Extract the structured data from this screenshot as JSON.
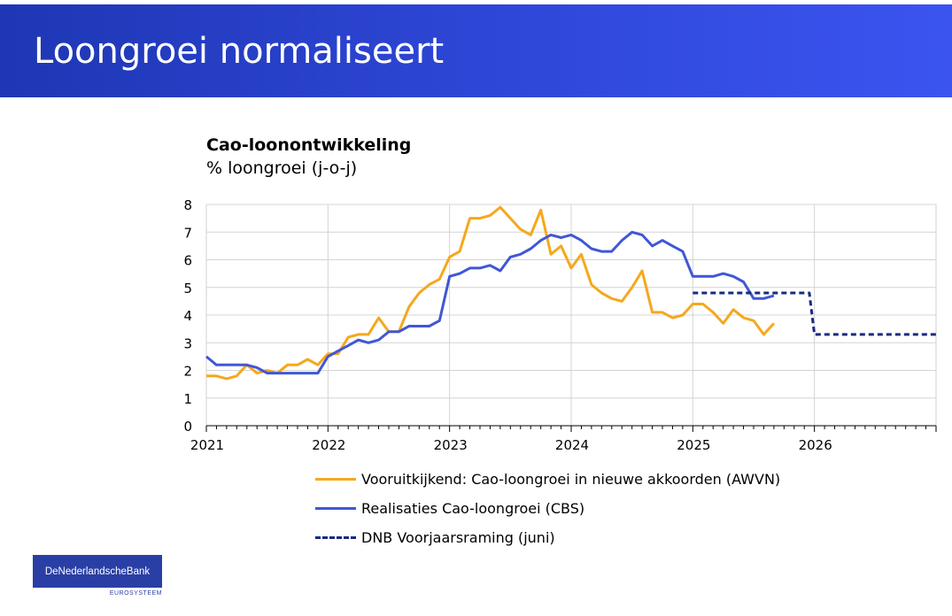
{
  "slide": {
    "title": "Loongroei normaliseert"
  },
  "logo": {
    "name": "DeNederlandscheBank",
    "subtext": "EUROSYSTEEM"
  },
  "chart_data": {
    "type": "line",
    "title": "Cao-loonontwikkeling",
    "subtitle": "% loongroei (j-o-j)",
    "ylim": [
      0,
      8
    ],
    "yticks": [
      0,
      1,
      2,
      3,
      4,
      5,
      6,
      7,
      8
    ],
    "xlim": [
      2021,
      2027
    ],
    "xticks": [
      2021,
      2022,
      2023,
      2024,
      2025,
      2026
    ],
    "grid": true,
    "legend_placement": "bottom",
    "series": [
      {
        "name": "Vooruitkijkend: Cao-loongroei in nieuwe akkoorden (AWVN)",
        "color": "#f5a81c",
        "style": "solid",
        "x": [
          2021.0,
          2021.083,
          2021.167,
          2021.25,
          2021.333,
          2021.417,
          2021.5,
          2021.583,
          2021.667,
          2021.75,
          2021.833,
          2021.917,
          2022.0,
          2022.083,
          2022.167,
          2022.25,
          2022.333,
          2022.417,
          2022.5,
          2022.583,
          2022.667,
          2022.75,
          2022.833,
          2022.917,
          2023.0,
          2023.083,
          2023.167,
          2023.25,
          2023.333,
          2023.417,
          2023.5,
          2023.583,
          2023.667,
          2023.75,
          2023.833,
          2023.917,
          2024.0,
          2024.083,
          2024.167,
          2024.25,
          2024.333,
          2024.417,
          2024.5,
          2024.583,
          2024.667,
          2024.75,
          2024.833,
          2024.917,
          2025.0,
          2025.083,
          2025.167,
          2025.25,
          2025.333,
          2025.417,
          2025.5,
          2025.583,
          2025.667
        ],
        "y": [
          1.8,
          1.8,
          1.7,
          1.8,
          2.2,
          1.9,
          2.0,
          1.9,
          2.2,
          2.2,
          2.4,
          2.2,
          2.6,
          2.6,
          3.2,
          3.3,
          3.3,
          3.9,
          3.4,
          3.4,
          4.3,
          4.8,
          5.1,
          5.3,
          6.1,
          6.3,
          7.5,
          7.5,
          7.6,
          7.9,
          7.5,
          7.1,
          6.9,
          7.8,
          6.2,
          6.5,
          5.7,
          6.2,
          5.1,
          4.8,
          4.6,
          4.5,
          5.0,
          5.6,
          4.1,
          4.1,
          3.9,
          4.0,
          4.4,
          4.4,
          4.1,
          3.7,
          4.2,
          3.9,
          3.8,
          3.3,
          3.7
        ]
      },
      {
        "name": "Realisaties Cao-loongroei (CBS)",
        "color": "#3f57d6",
        "style": "solid",
        "x": [
          2021.0,
          2021.083,
          2021.167,
          2021.25,
          2021.333,
          2021.417,
          2021.5,
          2021.583,
          2021.667,
          2021.75,
          2021.833,
          2021.917,
          2022.0,
          2022.083,
          2022.167,
          2022.25,
          2022.333,
          2022.417,
          2022.5,
          2022.583,
          2022.667,
          2022.75,
          2022.833,
          2022.917,
          2023.0,
          2023.083,
          2023.167,
          2023.25,
          2023.333,
          2023.417,
          2023.5,
          2023.583,
          2023.667,
          2023.75,
          2023.833,
          2023.917,
          2024.0,
          2024.083,
          2024.167,
          2024.25,
          2024.333,
          2024.417,
          2024.5,
          2024.583,
          2024.667,
          2024.75,
          2024.833,
          2024.917,
          2025.0,
          2025.083,
          2025.167,
          2025.25,
          2025.333,
          2025.417,
          2025.5,
          2025.583,
          2025.667
        ],
        "y": [
          2.5,
          2.2,
          2.2,
          2.2,
          2.2,
          2.1,
          1.9,
          1.9,
          1.9,
          1.9,
          1.9,
          1.9,
          2.5,
          2.7,
          2.9,
          3.1,
          3.0,
          3.1,
          3.4,
          3.4,
          3.6,
          3.6,
          3.6,
          3.8,
          5.4,
          5.5,
          5.7,
          5.7,
          5.8,
          5.6,
          6.1,
          6.2,
          6.4,
          6.7,
          6.9,
          6.8,
          6.9,
          6.7,
          6.4,
          6.3,
          6.3,
          6.7,
          7.0,
          6.9,
          6.5,
          6.7,
          6.5,
          6.3,
          5.4,
          5.4,
          5.4,
          5.5,
          5.4,
          5.2,
          4.6,
          4.6,
          4.7
        ]
      },
      {
        "name": "DNB Voorjaarsraming (juni)",
        "color": "#162b80",
        "style": "dashed",
        "x": [
          2025.0,
          2025.958,
          2026.0,
          2027.0
        ],
        "y": [
          4.8,
          4.8,
          3.3,
          3.3
        ]
      }
    ]
  }
}
